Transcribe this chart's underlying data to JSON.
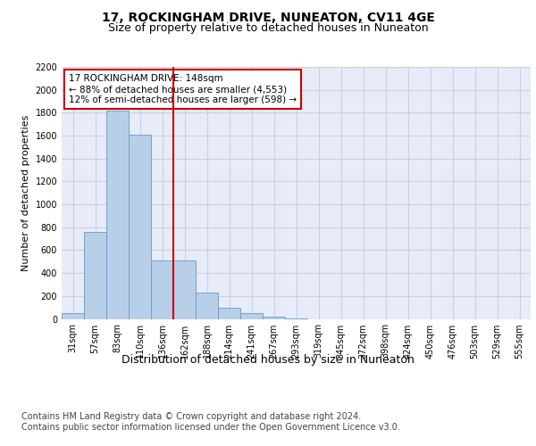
{
  "title": "17, ROCKINGHAM DRIVE, NUNEATON, CV11 4GE",
  "subtitle": "Size of property relative to detached houses in Nuneaton",
  "xlabel": "Distribution of detached houses by size in Nuneaton",
  "ylabel": "Number of detached properties",
  "categories": [
    "31sqm",
    "57sqm",
    "83sqm",
    "110sqm",
    "136sqm",
    "162sqm",
    "188sqm",
    "214sqm",
    "241sqm",
    "267sqm",
    "293sqm",
    "319sqm",
    "345sqm",
    "372sqm",
    "398sqm",
    "424sqm",
    "450sqm",
    "476sqm",
    "503sqm",
    "529sqm",
    "555sqm"
  ],
  "values": [
    50,
    760,
    1820,
    1610,
    510,
    510,
    230,
    100,
    50,
    20,
    5,
    0,
    0,
    0,
    0,
    0,
    0,
    0,
    0,
    0,
    0
  ],
  "bar_color": "#b8cfe8",
  "bar_edge_color": "#6699cc",
  "vline_x_index": 4.5,
  "vline_color": "#cc0000",
  "annotation_text": "17 ROCKINGHAM DRIVE: 148sqm\n← 88% of detached houses are smaller (4,553)\n12% of semi-detached houses are larger (598) →",
  "annotation_box_color": "#ffffff",
  "annotation_box_edge_color": "#cc0000",
  "ylim": [
    0,
    2200
  ],
  "yticks": [
    0,
    200,
    400,
    600,
    800,
    1000,
    1200,
    1400,
    1600,
    1800,
    2000,
    2200
  ],
  "grid_color": "#c8d0e8",
  "bg_color": "#e8ecf8",
  "footer_text": "Contains HM Land Registry data © Crown copyright and database right 2024.\nContains public sector information licensed under the Open Government Licence v3.0.",
  "title_fontsize": 10,
  "subtitle_fontsize": 9,
  "annotation_fontsize": 7.5,
  "tick_fontsize": 7,
  "ylabel_fontsize": 8,
  "xlabel_fontsize": 9,
  "footer_fontsize": 7
}
